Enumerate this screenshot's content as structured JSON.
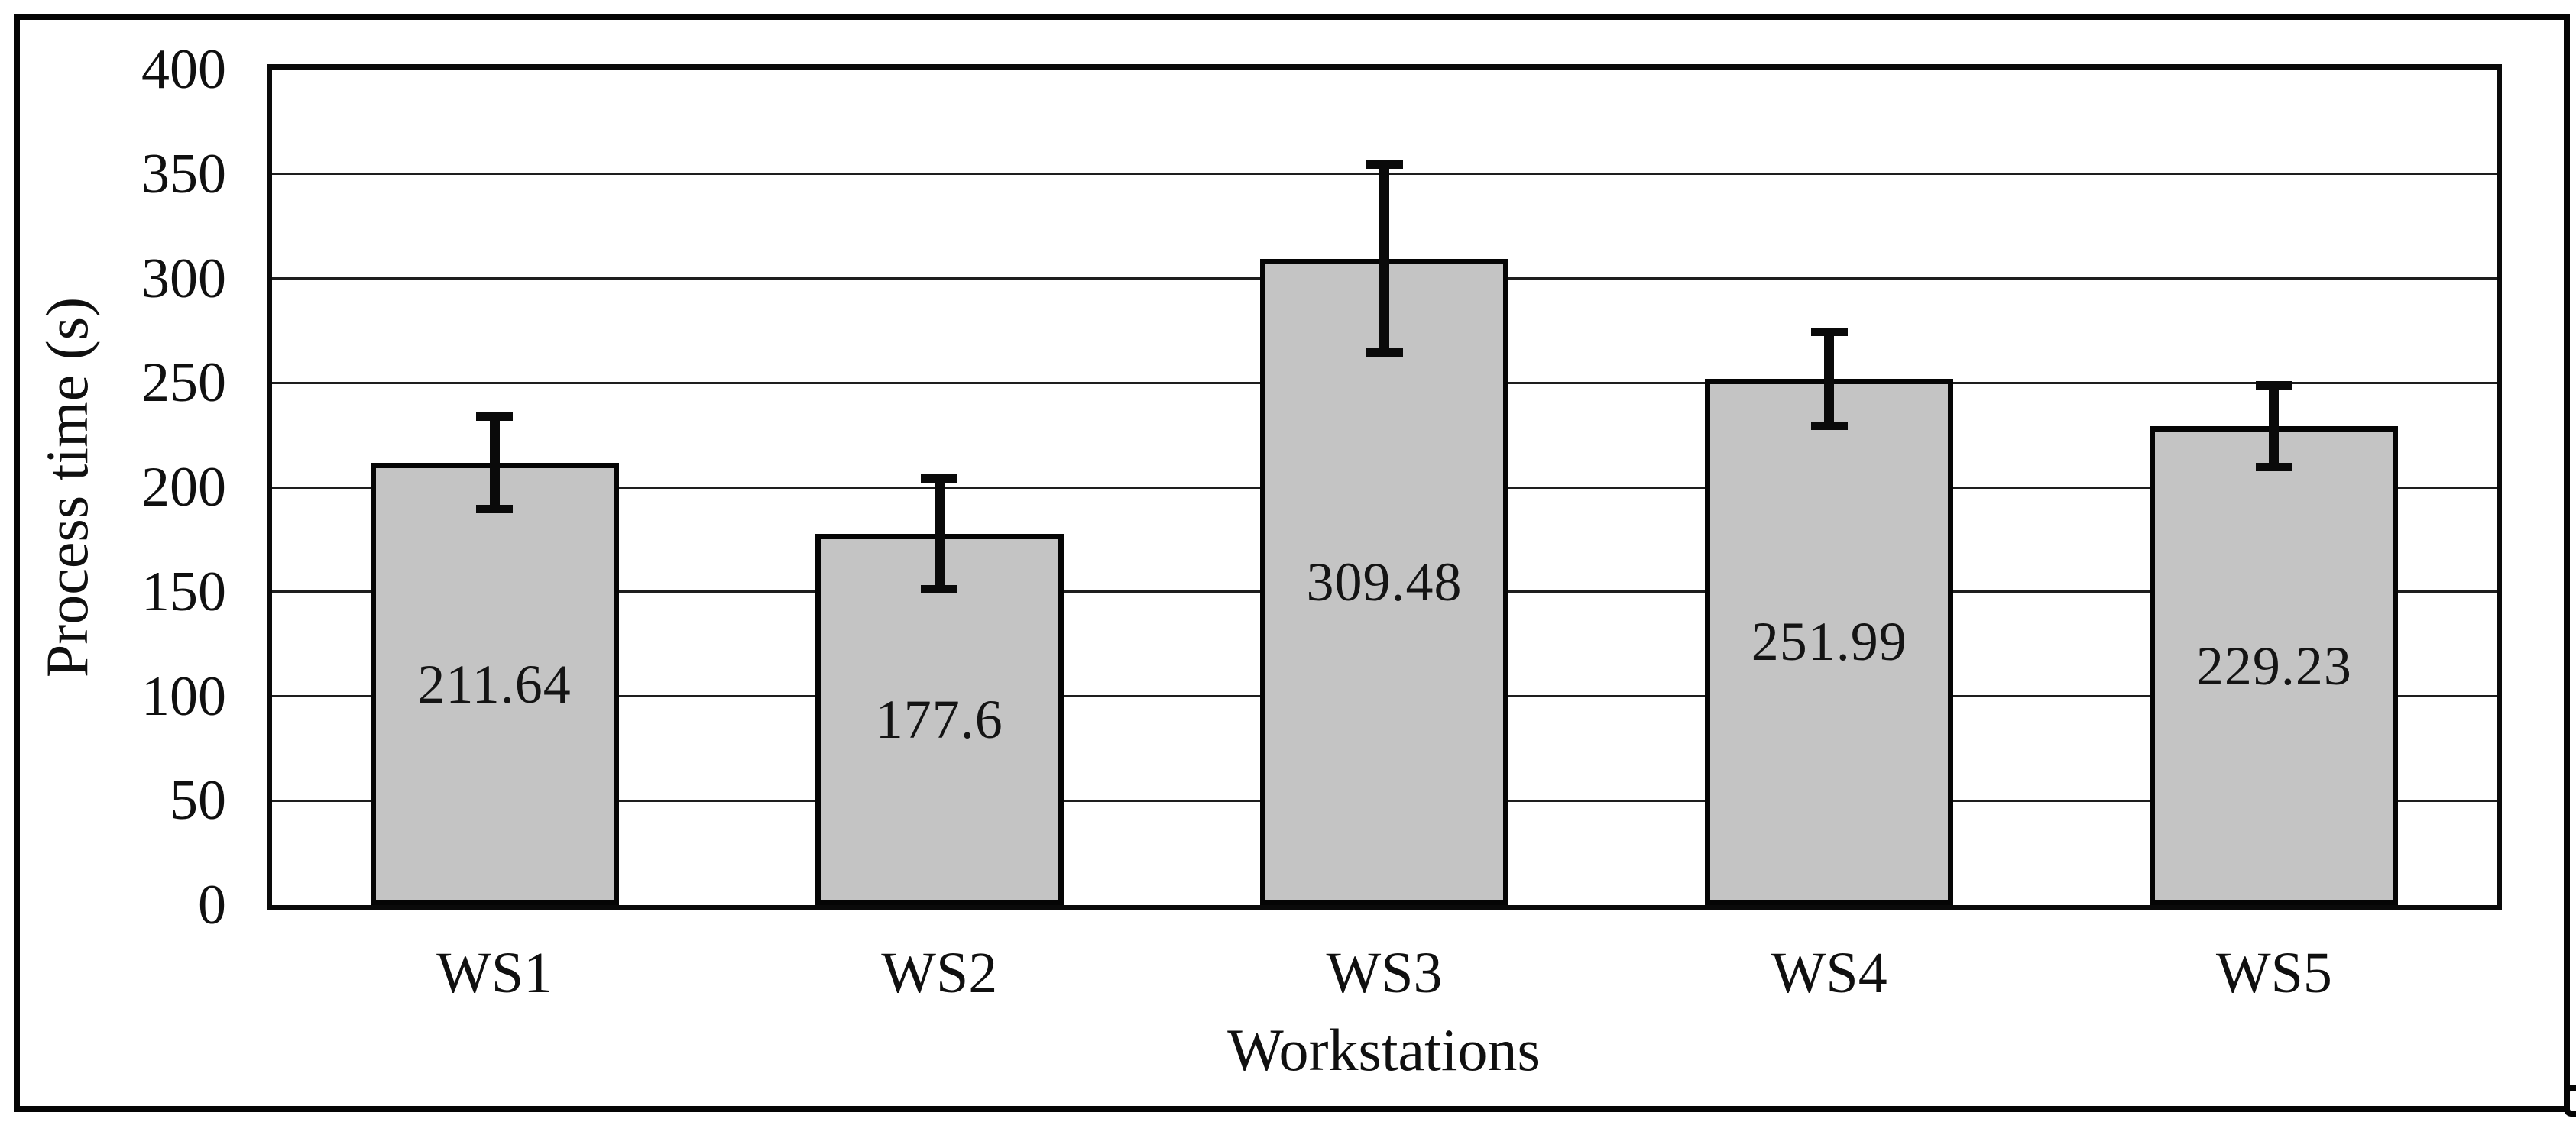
{
  "chart_data": {
    "type": "bar",
    "title": "",
    "categories": [
      "WS1",
      "WS2",
      "WS3",
      "WS4",
      "WS5"
    ],
    "values": [
      211.64,
      177.6,
      309.48,
      251.99,
      229.23
    ],
    "value_labels": [
      "211.64",
      "177.6",
      "309.48",
      "251.99",
      "229.23"
    ],
    "error_bars": [
      22,
      26.5,
      45,
      22.5,
      19.5
    ],
    "xlabel": "Workstations",
    "ylabel": "Process time (s)",
    "ylim": [
      0,
      400
    ],
    "y_ticks": [
      0,
      50,
      100,
      150,
      200,
      250,
      300,
      350,
      400
    ],
    "grid": "horizontal-only",
    "legend": "none",
    "bar_color": "#c4c4c4",
    "bar_border_color": "#050505",
    "error_bar_color": "#0a0a0a"
  }
}
